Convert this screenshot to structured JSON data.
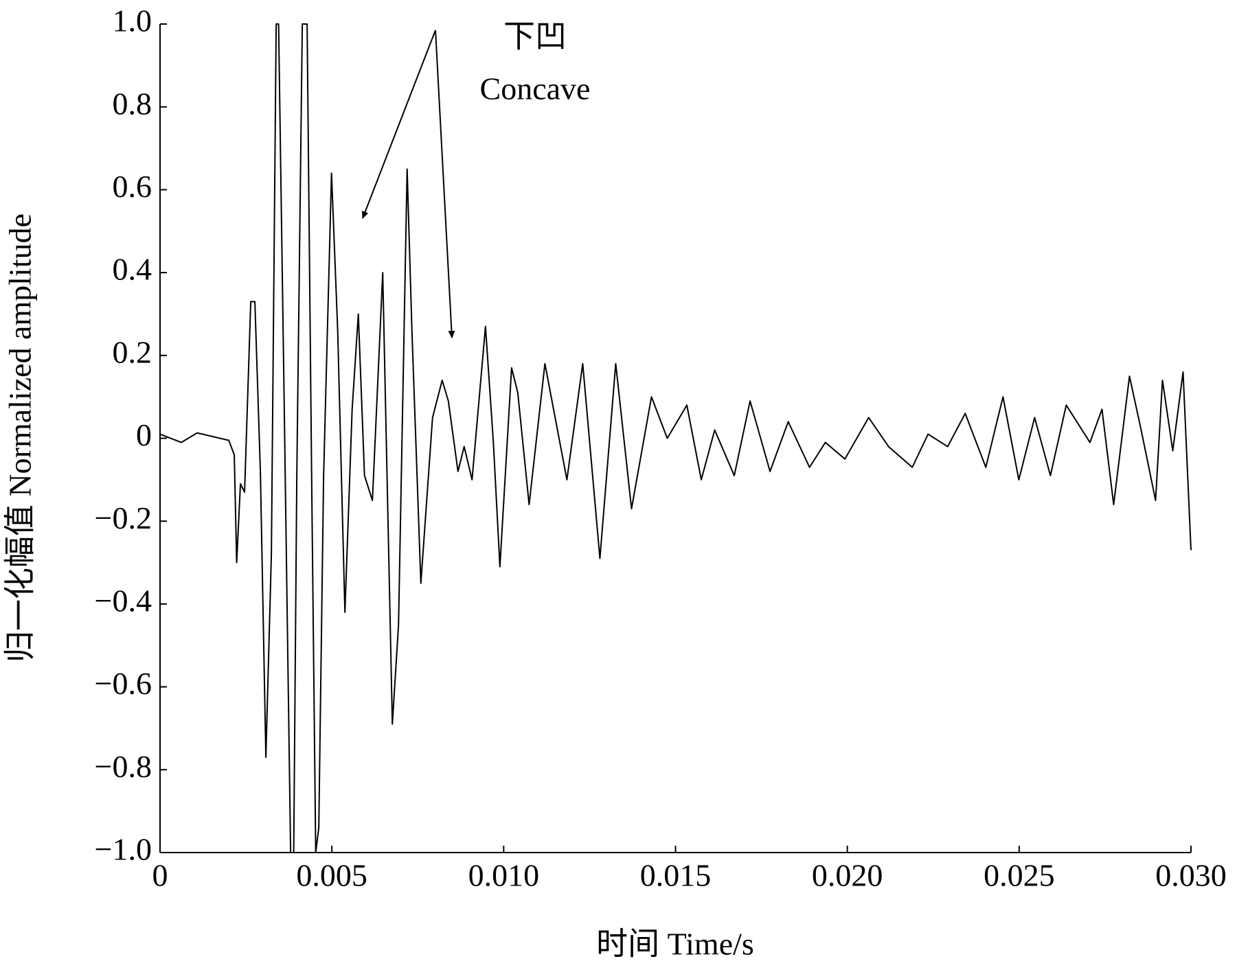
{
  "chart_data": {
    "type": "line",
    "xlabel": "时间  Time/s",
    "ylabel": "归一化幅值 Normalized amplitude",
    "annotations": [
      "下凹",
      "Concave"
    ],
    "color": "#000000",
    "x": [
      0,
      0.00062,
      0.00108,
      0.002,
      0.00216,
      0.00223,
      0.00234,
      0.00246,
      0.00264,
      0.00276,
      0.00292,
      0.00308,
      0.00324,
      0.00338,
      0.00345,
      0.00361,
      0.0038,
      0.00389,
      0.00398,
      0.00414,
      0.00428,
      0.00441,
      0.00453,
      0.00462,
      0.00476,
      0.00499,
      0.00517,
      0.00538,
      0.00559,
      0.00577,
      0.00595,
      0.00618,
      0.00648,
      0.00676,
      0.00694,
      0.00719,
      0.00733,
      0.00759,
      0.00793,
      0.00821,
      0.00839,
      0.00867,
      0.00885,
      0.00908,
      0.00947,
      0.0097,
      0.00989,
      0.01023,
      0.01041,
      0.01074,
      0.0112,
      0.01184,
      0.0123,
      0.0128,
      0.01326,
      0.01372,
      0.0143,
      0.01476,
      0.01533,
      0.01575,
      0.01614,
      0.01671,
      0.01717,
      0.01775,
      0.01828,
      0.0189,
      0.01936,
      0.01993,
      0.02062,
      0.0212,
      0.02189,
      0.02235,
      0.02292,
      0.02343,
      0.02403,
      0.02453,
      0.02499,
      0.02545,
      0.02591,
      0.02637,
      0.02706,
      0.02741,
      0.02775,
      0.02821,
      0.02855,
      0.02897,
      0.02917,
      0.02947,
      0.02977,
      0.03
    ],
    "values": [
      0.01,
      -0.01,
      0.013,
      -0.005,
      -0.04,
      -0.3,
      -0.11,
      -0.13,
      0.33,
      0.33,
      -0.08,
      -0.77,
      -0.28,
      1.0,
      1.0,
      0.1,
      -1.0,
      -1.0,
      -0.09,
      1.0,
      1.0,
      -0.08,
      -1.0,
      -0.94,
      -0.09,
      0.64,
      0.26,
      -0.42,
      0.07,
      0.3,
      -0.09,
      -0.15,
      0.4,
      -0.69,
      -0.45,
      0.65,
      0.26,
      -0.35,
      0.05,
      0.14,
      0.09,
      -0.08,
      -0.02,
      -0.1,
      0.27,
      -0.01,
      -0.31,
      0.17,
      0.11,
      -0.16,
      0.18,
      -0.1,
      0.18,
      -0.29,
      0.18,
      -0.17,
      0.1,
      0,
      0.08,
      -0.1,
      0.02,
      -0.09,
      0.09,
      -0.08,
      0.04,
      -0.07,
      -0.01,
      -0.05,
      0.05,
      -0.02,
      -0.07,
      0.01,
      -0.02,
      0.06,
      -0.07,
      0.1,
      -0.1,
      0.05,
      -0.09,
      0.08,
      -0.01,
      0.07,
      -0.16,
      0.15,
      0.02,
      -0.15,
      0.14,
      -0.03,
      0.16,
      -0.27
    ],
    "xlim": [
      0,
      0.03
    ],
    "xticks": [
      0,
      0.005,
      {
        "value": 0.01,
        "label": "0.010"
      },
      0.015,
      {
        "value": 0.02,
        "label": "0.020"
      },
      0.025,
      {
        "value": 0.03,
        "label": "0.030"
      }
    ],
    "ylim": [
      -1,
      1
    ],
    "yticks": [
      {
        "value": -1,
        "label": "−1.0"
      },
      {
        "value": -0.8,
        "label": "−0.8"
      },
      {
        "value": -0.6,
        "label": "−0.6"
      },
      {
        "value": -0.4,
        "label": "−0.4"
      },
      {
        "value": -0.2,
        "label": "−0.2"
      },
      0,
      0.2,
      0.4,
      0.6,
      0.8,
      {
        "value": 1,
        "label": "1.0"
      }
    ]
  }
}
